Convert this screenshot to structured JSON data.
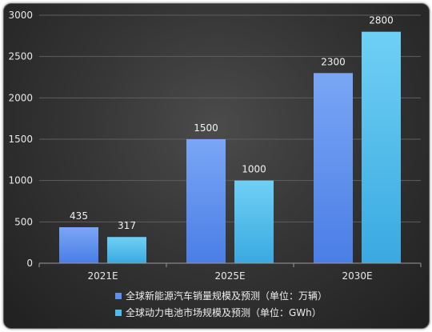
{
  "chart_data": {
    "type": "bar",
    "categories": [
      "2021E",
      "2025E",
      "2030E"
    ],
    "series": [
      {
        "name": "全球新能源汽车销量规模及预测（单位：万辆）",
        "values": [
          435,
          1500,
          2300
        ],
        "color": "#5b8ff0"
      },
      {
        "name": "全球动力电池市场规模及预测（单位：GWh）",
        "values": [
          317,
          1000,
          2800
        ],
        "color": "#4dbdec"
      }
    ],
    "y_ticks": [
      0,
      500,
      1000,
      1500,
      2000,
      2500,
      3000
    ],
    "ylim": [
      0,
      3000
    ],
    "grid": true,
    "legend_position": "bottom",
    "title": "",
    "xlabel": "",
    "ylabel": ""
  }
}
